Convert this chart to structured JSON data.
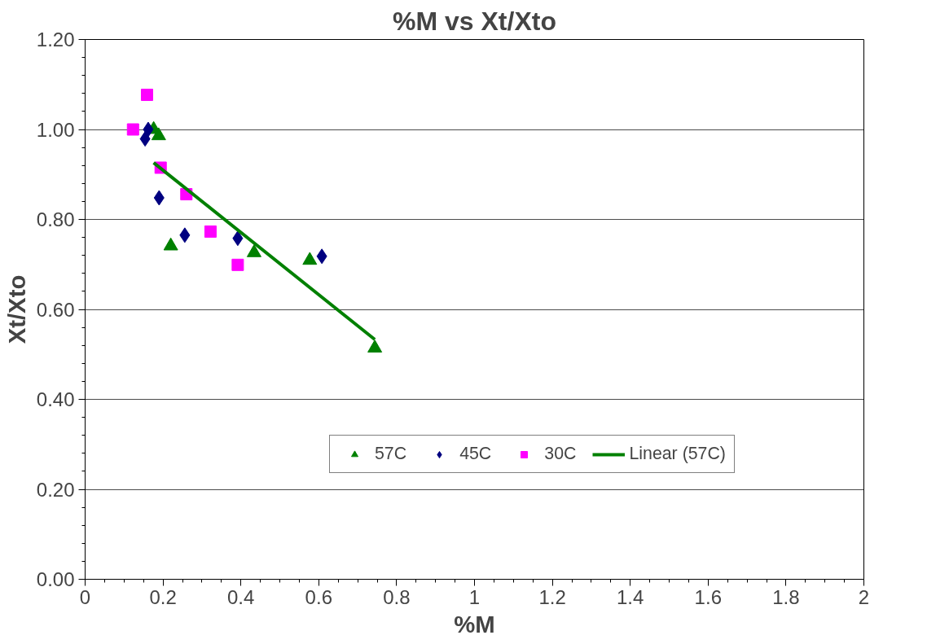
{
  "chart_data": {
    "type": "scatter",
    "title": "%M vs Xt/Xto",
    "xlabel": "%M",
    "ylabel": "Xt/Xto",
    "xlim": [
      0,
      2
    ],
    "xticks": [
      0,
      0.2,
      0.4,
      0.6,
      0.8,
      1,
      1.2,
      1.4,
      1.6,
      1.8,
      2
    ],
    "ylim": [
      0,
      1.2
    ],
    "yticks": [
      {
        "value": 0,
        "label": "0.00"
      },
      {
        "value": 0.2,
        "label": "0.20"
      },
      {
        "value": 0.4,
        "label": "0.40"
      },
      {
        "value": 0.6,
        "label": "0.60"
      },
      {
        "value": 0.8,
        "label": "0.80"
      },
      {
        "value": 1.0,
        "label": "1.00"
      },
      {
        "value": 1.2,
        "label": "1.20"
      }
    ],
    "grid": "y",
    "legend": "right",
    "series": [
      {
        "name": "57C",
        "color": "#008000",
        "marker": "triangle",
        "x": [
          0.176,
          0.189,
          0.22,
          0.434,
          0.577,
          0.744
        ],
        "values": [
          1.0,
          0.986,
          0.741,
          0.726,
          0.709,
          0.514
        ]
      },
      {
        "name": "45C",
        "color": "#000080",
        "marker": "diamond",
        "x": [
          0.162,
          0.154,
          0.19,
          0.256,
          0.392,
          0.608
        ],
        "values": [
          1.0,
          0.979,
          0.848,
          0.765,
          0.758,
          0.718
        ]
      },
      {
        "name": "30C",
        "color": "#ff00ff",
        "marker": "square",
        "x": [
          0.123,
          0.159,
          0.194,
          0.26,
          0.322,
          0.392
        ],
        "values": [
          1.0,
          1.077,
          0.915,
          0.856,
          0.773,
          0.699
        ]
      },
      {
        "name": "Linear (57C)",
        "type": "line",
        "color": "#008000",
        "marker": "none",
        "line_style": "solid",
        "x": [
          0.176,
          0.744
        ],
        "values": [
          0.926,
          0.533
        ]
      }
    ]
  }
}
